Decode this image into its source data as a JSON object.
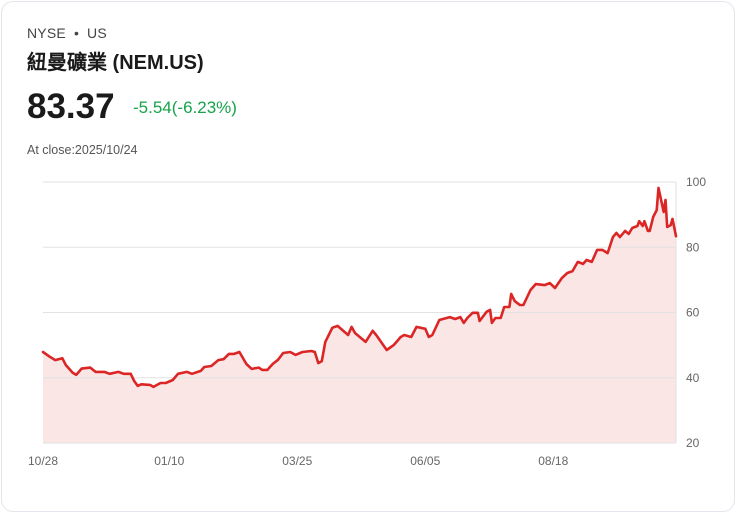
{
  "header": {
    "exchange": "NYSE",
    "separator": "•",
    "market": "US",
    "title": "紐曼礦業 (NEM.US)",
    "price": "83.37",
    "change": "-5.54(-6.23%)",
    "close_label": "At close:2025/10/24"
  },
  "colors": {
    "line": "#dc2626",
    "fill": "#fbe6e6",
    "change": "#16a34a",
    "grid": "#e2e2e2"
  },
  "chart_data": {
    "type": "area",
    "title": "",
    "xlabel": "",
    "ylabel": "",
    "ylim": [
      20,
      100
    ],
    "yticks": [
      20,
      40,
      60,
      80,
      100
    ],
    "ytick_labels": [
      "20",
      "40",
      "60",
      "80",
      "100"
    ],
    "xlim_days": [
      0,
      361
    ],
    "xticks": [
      {
        "day": 0,
        "label": "10/28"
      },
      {
        "day": 72,
        "label": "01/10"
      },
      {
        "day": 145,
        "label": "03/25"
      },
      {
        "day": 218,
        "label": "06/05"
      },
      {
        "day": 291,
        "label": "08/18"
      }
    ],
    "grid": true,
    "series": [
      {
        "name": "NEM.US",
        "points": [
          [
            0,
            47.9
          ],
          [
            4,
            46.4
          ],
          [
            7,
            45.4
          ],
          [
            11,
            46
          ],
          [
            13,
            43.9
          ],
          [
            17,
            41.5
          ],
          [
            19,
            40.9
          ],
          [
            22,
            42.8
          ],
          [
            27,
            43.1
          ],
          [
            30,
            41.8
          ],
          [
            35,
            41.8
          ],
          [
            38,
            41.2
          ],
          [
            43,
            41.8
          ],
          [
            46,
            41.2
          ],
          [
            50,
            41.2
          ],
          [
            52,
            39
          ],
          [
            54,
            37.5
          ],
          [
            56,
            38
          ],
          [
            61,
            37.8
          ],
          [
            63,
            37.2
          ],
          [
            67,
            38.4
          ],
          [
            70,
            38.4
          ],
          [
            74,
            39.3
          ],
          [
            77,
            41.2
          ],
          [
            82,
            41.8
          ],
          [
            85,
            41.2
          ],
          [
            90,
            42.1
          ],
          [
            92,
            43.3
          ],
          [
            96,
            43.6
          ],
          [
            100,
            45.4
          ],
          [
            103,
            45.7
          ],
          [
            106,
            47.3
          ],
          [
            109,
            47.3
          ],
          [
            112,
            47.9
          ],
          [
            116,
            44.2
          ],
          [
            119,
            42.7
          ],
          [
            123,
            43.1
          ],
          [
            125,
            42.4
          ],
          [
            128,
            42.4
          ],
          [
            131,
            44.2
          ],
          [
            134,
            45.5
          ],
          [
            137,
            47.6
          ],
          [
            141,
            47.9
          ],
          [
            144,
            47
          ],
          [
            148,
            47.9
          ],
          [
            153,
            48.2
          ],
          [
            155,
            47.9
          ],
          [
            157,
            44.5
          ],
          [
            159,
            45.1
          ],
          [
            161,
            51
          ],
          [
            165,
            55.3
          ],
          [
            168,
            55.9
          ],
          [
            174,
            53.1
          ],
          [
            176,
            55.6
          ],
          [
            178,
            53.7
          ],
          [
            184,
            51
          ],
          [
            188,
            54.4
          ],
          [
            190,
            53.1
          ],
          [
            196,
            48.5
          ],
          [
            200,
            50
          ],
          [
            204,
            52.5
          ],
          [
            206,
            53.1
          ],
          [
            210,
            52.5
          ],
          [
            213,
            55.6
          ],
          [
            218,
            55
          ],
          [
            220,
            52.5
          ],
          [
            222,
            53.1
          ],
          [
            226,
            57.7
          ],
          [
            232,
            58.6
          ],
          [
            235,
            58
          ],
          [
            238,
            58.6
          ],
          [
            240,
            56.8
          ],
          [
            242,
            58.3
          ],
          [
            245,
            59.9
          ],
          [
            248,
            59.9
          ],
          [
            249,
            57.4
          ],
          [
            253,
            60.2
          ],
          [
            255,
            60.8
          ],
          [
            256,
            56.8
          ],
          [
            258,
            58.3
          ],
          [
            261,
            58.3
          ],
          [
            263,
            61.7
          ],
          [
            266,
            61.7
          ],
          [
            267,
            65.7
          ],
          [
            269,
            63.5
          ],
          [
            272,
            62.3
          ],
          [
            274,
            62.3
          ],
          [
            278,
            66.9
          ],
          [
            281,
            68.7
          ],
          [
            286,
            68.4
          ],
          [
            289,
            69
          ],
          [
            292,
            67.5
          ],
          [
            296,
            70.6
          ],
          [
            299,
            72.1
          ],
          [
            302,
            72.7
          ],
          [
            305,
            75.5
          ],
          [
            308,
            74.9
          ],
          [
            310,
            76.1
          ],
          [
            313,
            75.5
          ],
          [
            316,
            79.2
          ],
          [
            319,
            79.2
          ],
          [
            322,
            78.2
          ],
          [
            325,
            83.1
          ],
          [
            327,
            84.4
          ],
          [
            329,
            83.1
          ],
          [
            332,
            85
          ],
          [
            334,
            84.1
          ],
          [
            336,
            85.9
          ],
          [
            339,
            86.5
          ],
          [
            340,
            88
          ],
          [
            342,
            86.5
          ],
          [
            343,
            88
          ],
          [
            345,
            85
          ],
          [
            346,
            85
          ],
          [
            348,
            89.3
          ],
          [
            350,
            91.4
          ],
          [
            351,
            98.2
          ],
          [
            354,
            90.8
          ],
          [
            355,
            94.5
          ],
          [
            356,
            86.2
          ],
          [
            358,
            86.8
          ],
          [
            359,
            88.7
          ],
          [
            361,
            83.4
          ]
        ]
      }
    ]
  }
}
